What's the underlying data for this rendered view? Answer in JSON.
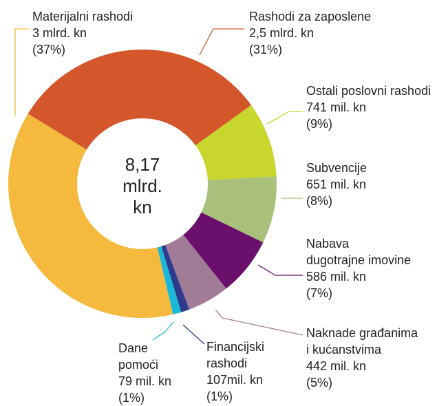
{
  "chart_data": {
    "type": "donut",
    "center_label": [
      "8,17",
      "mlrd.",
      "kn"
    ],
    "categories": [
      [
        "Rashodi za zaposlene"
      ],
      [
        "Ostali poslovni rashodi"
      ],
      [
        "Subvencije"
      ],
      [
        "Nabava",
        "dugotrajne imovine"
      ],
      [
        "Naknade građanima",
        "i kućanstvima"
      ],
      [
        "Financijski",
        "rashodi"
      ],
      [
        "Dane",
        "pomoći"
      ],
      [
        "Materijalni rashodi"
      ]
    ],
    "amount_labels": [
      "2,5 mlrd. kn",
      "741 mil. kn",
      "651 mil. kn",
      "586 mil. kn",
      "442 mil. kn",
      "107mil. kn",
      "79 mil. kn",
      "3 mlrd. kn"
    ],
    "values": [
      31,
      9,
      8,
      7,
      5,
      1,
      1,
      37
    ],
    "value_labels": [
      "(31%)",
      "(9%)",
      "(8%)",
      "(7%)",
      "(5%)",
      "(1%)",
      "(1%)",
      "(37%)"
    ],
    "colors": [
      "#d4562b",
      "#c8d62e",
      "#a9c07a",
      "#6a0f6b",
      "#a27c96",
      "#2e3a8c",
      "#1ab8d8",
      "#f4b93d"
    ]
  }
}
